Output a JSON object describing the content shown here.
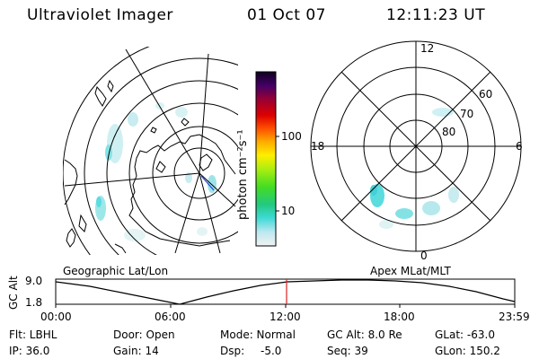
{
  "header": {
    "instrument": "Ultraviolet Imager",
    "date": "01 Oct 07",
    "time": "12:11:23 UT"
  },
  "colorbar": {
    "label": "photon cm⁻²s⁻¹",
    "ticks": [
      "100",
      "10"
    ]
  },
  "geo_panel": {
    "caption": "Geographic Lat/Lon"
  },
  "apex_panel": {
    "caption": "Apex MLat/MLT",
    "mlt_labels": {
      "top": "12",
      "left": "18",
      "right": "6",
      "bottom": "0"
    },
    "lat_labels": [
      "60",
      "70",
      "80"
    ]
  },
  "timeline": {
    "ylabel": "GC Alt",
    "ytick_top": "9.0",
    "ytick_bottom": "1.8",
    "xticks": [
      "00:00",
      "06:00",
      "12:00",
      "18:00",
      "23:59"
    ],
    "marker_color": "#dd2222"
  },
  "info": {
    "filter": "Flt: LBHL",
    "door": "Door: Open",
    "mode": "Mode: Normal",
    "gc_alt": "GC Alt: 8.0 Re",
    "glat": "GLat: -63.0",
    "ip": "IP: 36.0",
    "gain": "Gain: 14",
    "dsp_label": "Dsp:",
    "dsp_value": "-5.0",
    "seq": "Seq: 39",
    "glon": "GLon: 150.2"
  }
}
